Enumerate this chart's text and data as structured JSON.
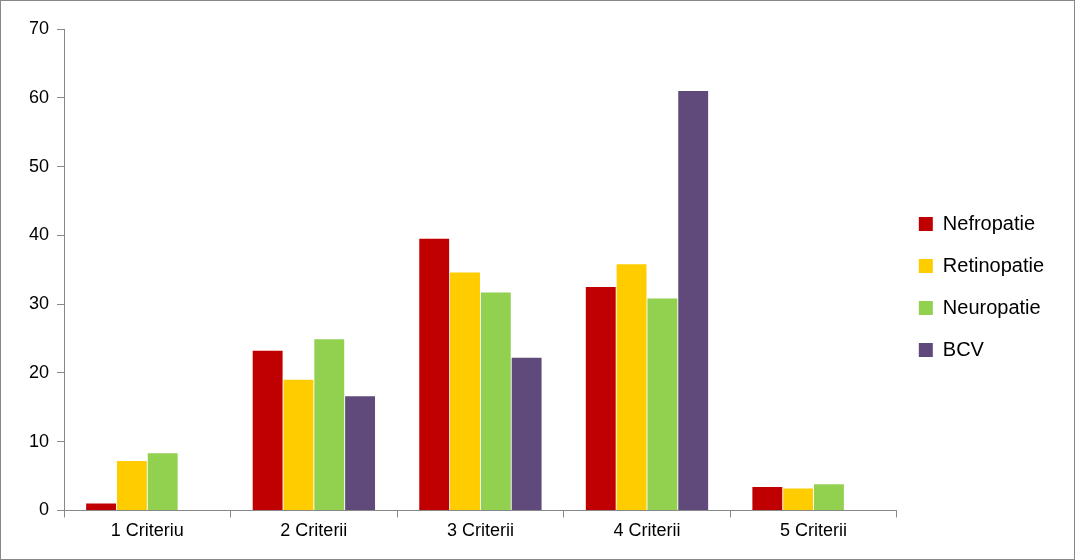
{
  "chart_data": {
    "type": "bar",
    "categories": [
      "1 Criteriu",
      "2 Criterii",
      "3 Criterii",
      "4 Criterii",
      "5 Criterii"
    ],
    "series": [
      {
        "name": "Nefropatie",
        "color": "#c00000",
        "values": [
          1.0,
          23.2,
          39.5,
          32.5,
          3.4
        ]
      },
      {
        "name": "Retinopatie",
        "color": "#ffcc00",
        "values": [
          7.2,
          19.0,
          34.6,
          35.8,
          3.2
        ]
      },
      {
        "name": "Neuropatie",
        "color": "#92d050",
        "values": [
          8.3,
          24.9,
          31.7,
          30.8,
          3.8
        ]
      },
      {
        "name": "BCV",
        "color": "#604a7b",
        "values": [
          null,
          16.6,
          22.2,
          61.0,
          null
        ]
      }
    ],
    "ylim": [
      0,
      70
    ],
    "yticks": [
      0,
      10,
      20,
      30,
      40,
      50,
      60,
      70
    ],
    "grid": false,
    "legend": "right"
  }
}
